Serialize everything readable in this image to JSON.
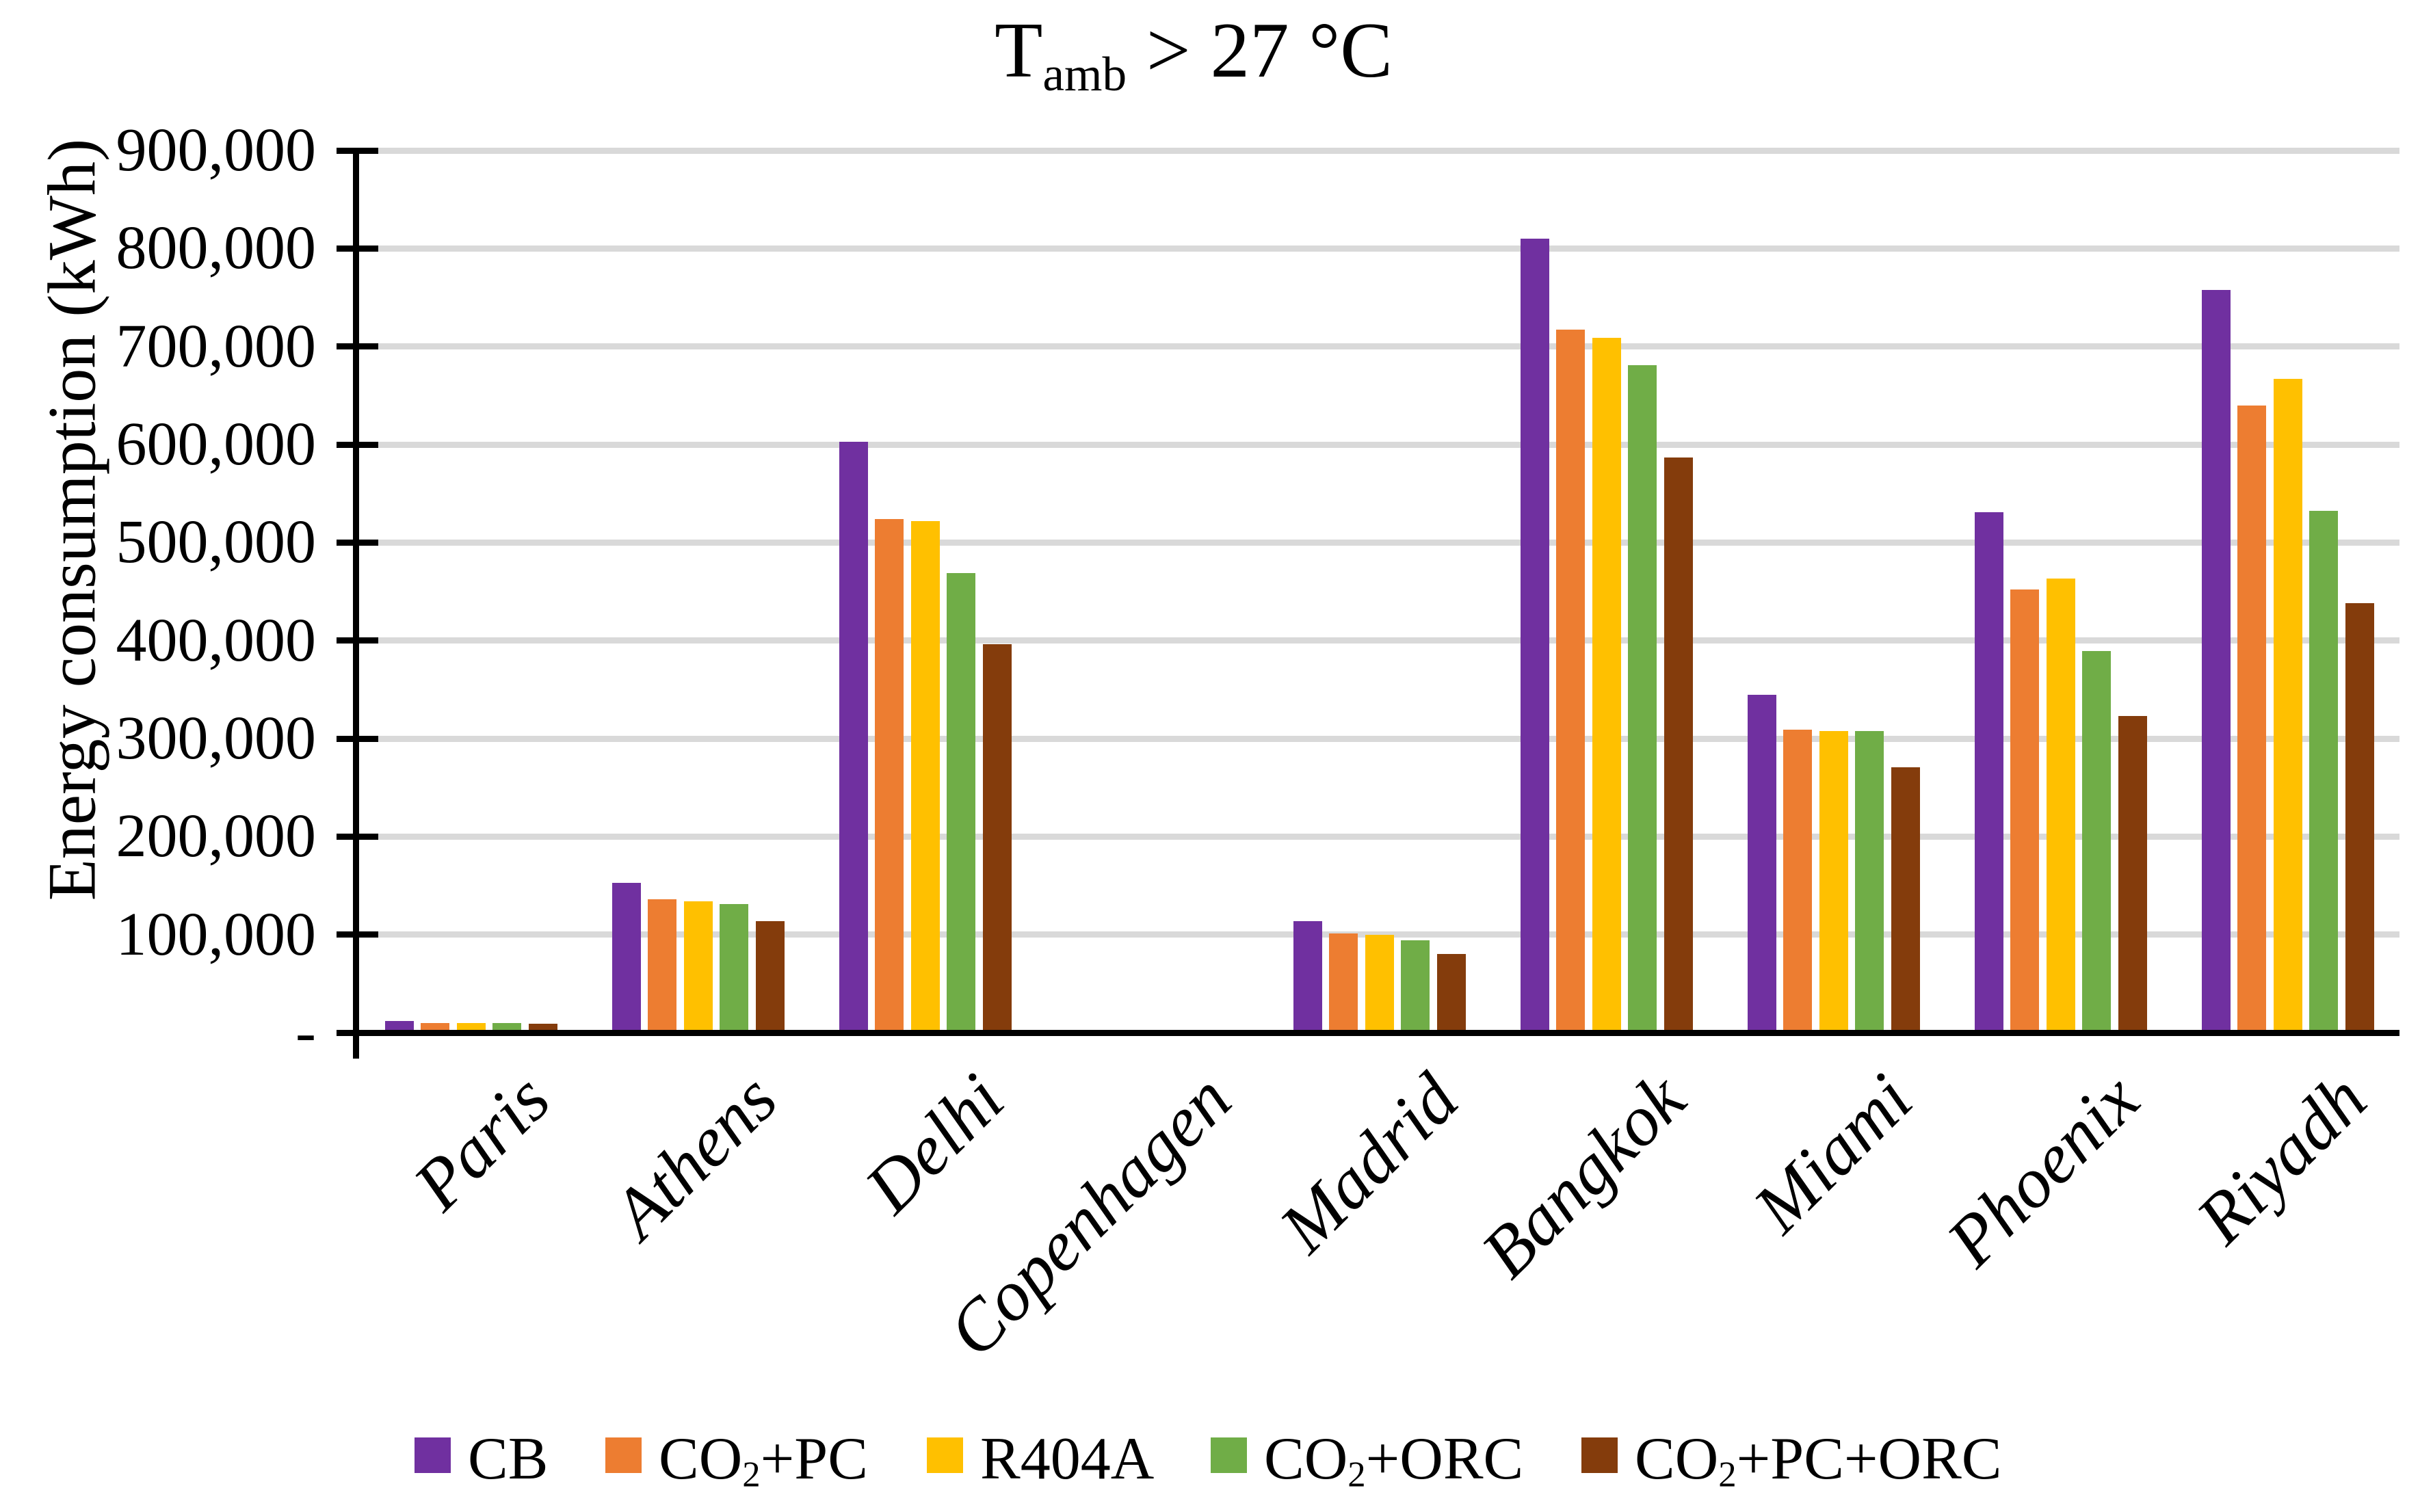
{
  "chart_data": {
    "type": "bar",
    "title": {
      "pre": "T",
      "sub": "amb",
      "post": " > 27 °C",
      "plain": "Tamb > 27 °C"
    },
    "y_axis": {
      "title": "Energy consumption (kWh)",
      "min": 0,
      "max": 900000,
      "tick_step": 100000,
      "tick_labels": [
        "-",
        "100,000",
        "200,000",
        "300,000",
        "400,000",
        "500,000",
        "600,000",
        "700,000",
        "800,000",
        "900,000"
      ]
    },
    "categories": [
      "Paris",
      "Athens",
      "Delhi",
      "Copenhagen",
      "Madrid",
      "Bangkok",
      "Miami",
      "Phoenix",
      "Riyadh"
    ],
    "series": [
      {
        "name": "CB",
        "name_parts": {
          "pre": "CB",
          "sub": "",
          "post": ""
        },
        "color": "#7030A0",
        "values": [
          12000,
          153000,
          603000,
          0,
          114000,
          810000,
          345000,
          531000,
          758000
        ]
      },
      {
        "name": "CO2+PC",
        "name_parts": {
          "pre": "CO",
          "sub": "2",
          "post": "+PC"
        },
        "color": "#ED7D31",
        "values": [
          10000,
          136000,
          524000,
          0,
          101000,
          717000,
          309000,
          452000,
          640000
        ]
      },
      {
        "name": "R404A",
        "name_parts": {
          "pre": "R404A",
          "sub": "",
          "post": ""
        },
        "color": "#FFC000",
        "values": [
          10000,
          134000,
          522000,
          0,
          100000,
          709000,
          308000,
          463000,
          667000
        ]
      },
      {
        "name": "CO2+ORC",
        "name_parts": {
          "pre": "CO",
          "sub": "2",
          "post": "+ORC"
        },
        "color": "#70AD47",
        "values": [
          9800,
          131000,
          469000,
          0,
          94000,
          681000,
          308000,
          389000,
          532000
        ]
      },
      {
        "name": "CO2+PC+ORC",
        "name_parts": {
          "pre": "CO",
          "sub": "2",
          "post": "+PC+ORC"
        },
        "color": "#843C0C",
        "values": [
          8800,
          114000,
          396000,
          0,
          80000,
          587000,
          271000,
          323000,
          438000
        ]
      }
    ],
    "legend_position": "bottom",
    "grid": "horizontal",
    "gridline_color": "#D9D9D9",
    "axis_color": "#000000"
  }
}
